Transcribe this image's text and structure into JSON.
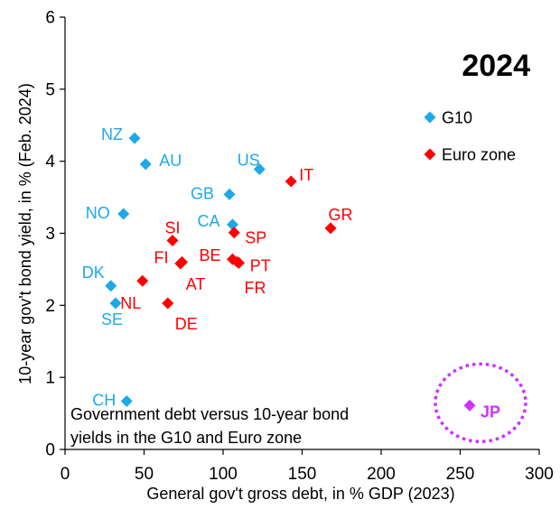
{
  "chart_data": {
    "type": "scatter",
    "year_label": "2024",
    "xlabel": "General gov't gross debt, in % GDP (2023)",
    "ylabel": "10-year gov't bond yield, in % (Feb. 2024)",
    "xlim": [
      0,
      300
    ],
    "ylim": [
      0,
      6
    ],
    "x_ticks": [
      "0",
      "50",
      "100",
      "150",
      "200",
      "250",
      "300"
    ],
    "y_ticks": [
      "0",
      "1",
      "2",
      "3",
      "4",
      "5",
      "6"
    ],
    "annotation_lines": [
      "Government debt versus 10-year bond",
      "yields in the G10 and Euro zone"
    ],
    "colors": {
      "g10": "#1EA8E8",
      "euro": "#FF0000",
      "jp": "#CC33FF"
    },
    "legend": [
      {
        "name": "G10",
        "group": "g10"
      },
      {
        "name": "Euro zone",
        "group": "euro"
      }
    ],
    "series": [
      {
        "name": "G10",
        "group": "g10",
        "points": [
          {
            "label": "NZ",
            "x": 44,
            "y": 4.32
          },
          {
            "label": "AU",
            "x": 51,
            "y": 3.96
          },
          {
            "label": "US",
            "x": 123,
            "y": 3.89
          },
          {
            "label": "GB",
            "x": 104,
            "y": 3.54
          },
          {
            "label": "NO",
            "x": 37,
            "y": 3.27
          },
          {
            "label": "CA",
            "x": 106,
            "y": 3.12
          },
          {
            "label": "DK",
            "x": 29,
            "y": 2.27
          },
          {
            "label": "SE",
            "x": 32,
            "y": 2.03
          },
          {
            "label": "CH",
            "x": 39,
            "y": 0.67
          }
        ]
      },
      {
        "name": "Euro zone",
        "group": "euro",
        "points": [
          {
            "label": "IT",
            "x": 143,
            "y": 3.72
          },
          {
            "label": "GR",
            "x": 168,
            "y": 3.07
          },
          {
            "label": "SP",
            "x": 107,
            "y": 3.01
          },
          {
            "label": "SI",
            "x": 68,
            "y": 2.9
          },
          {
            "label": "FI",
            "x": 74,
            "y": 2.6
          },
          {
            "label": "AT",
            "x": 73,
            "y": 2.58
          },
          {
            "label": "BE",
            "x": 106,
            "y": 2.64
          },
          {
            "label": "PT",
            "x": 109,
            "y": 2.6
          },
          {
            "label": "FR",
            "x": 110,
            "y": 2.59
          },
          {
            "label": "NL",
            "x": 49,
            "y": 2.34
          },
          {
            "label": "DE",
            "x": 65,
            "y": 2.03
          }
        ]
      },
      {
        "name": "JP",
        "group": "jp",
        "highlight": true,
        "points": [
          {
            "label": "JP",
            "x": 256,
            "y": 0.61
          }
        ]
      }
    ]
  }
}
